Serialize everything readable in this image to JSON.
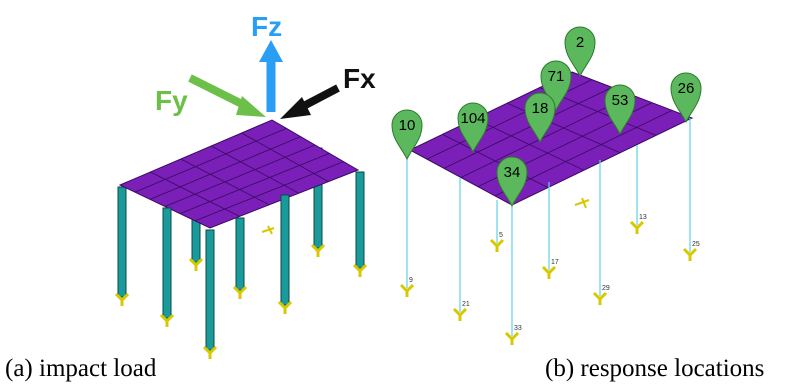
{
  "panel_a": {
    "forces": {
      "fz": "Fz",
      "fy": "Fy",
      "fx": "Fx"
    },
    "caption": "(a) impact load"
  },
  "panel_b": {
    "markers": [
      "2",
      "71",
      "53",
      "26",
      "10",
      "104",
      "18",
      "34"
    ],
    "node_labels": [
      "5",
      "17",
      "13",
      "25",
      "9",
      "21",
      "29",
      "33"
    ],
    "caption": "(b) response locations"
  }
}
